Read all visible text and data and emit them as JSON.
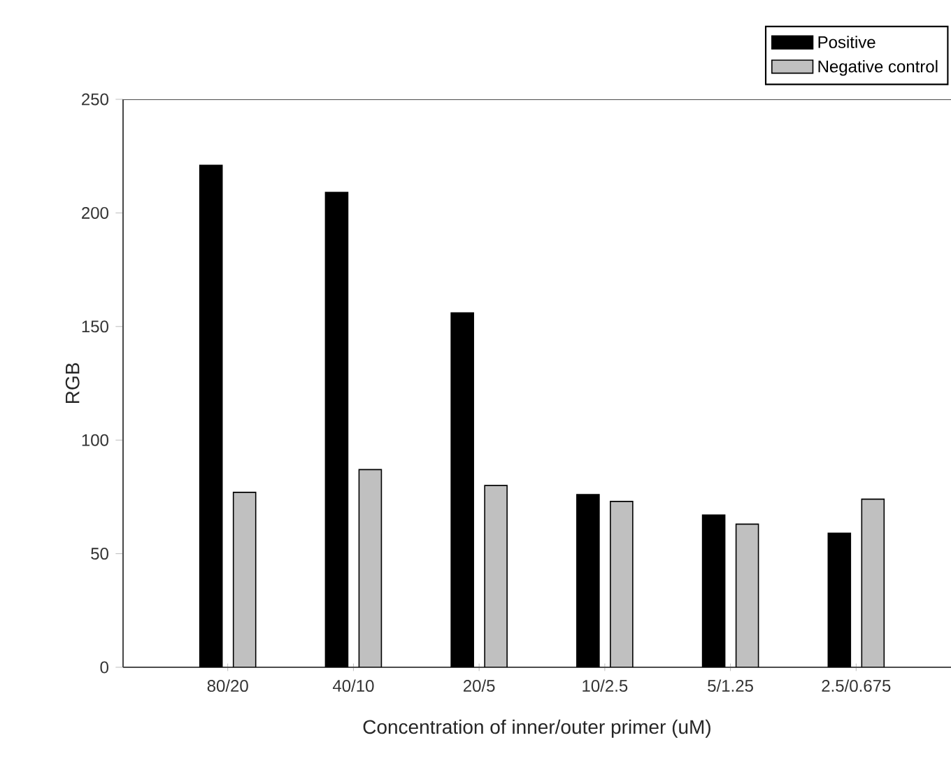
{
  "chart_data": {
    "type": "bar",
    "xlabel": "Concentration of inner/outer primer (uM)",
    "ylabel": "RGB",
    "categories": [
      "80/20",
      "40/10",
      "20/5",
      "10/2.5",
      "5/1.25",
      "2.5/0.675"
    ],
    "series": [
      {
        "name": "Positive",
        "color": "#000000",
        "values": [
          221,
          209,
          156,
          76,
          67,
          59
        ]
      },
      {
        "name": "Negative control",
        "color": "#c0c0c0",
        "values": [
          77,
          87,
          80,
          73,
          63,
          74
        ]
      }
    ],
    "ylim": [
      0,
      250
    ],
    "yticks": [
      0,
      50,
      100,
      150,
      200,
      250
    ],
    "legend": "top right"
  }
}
